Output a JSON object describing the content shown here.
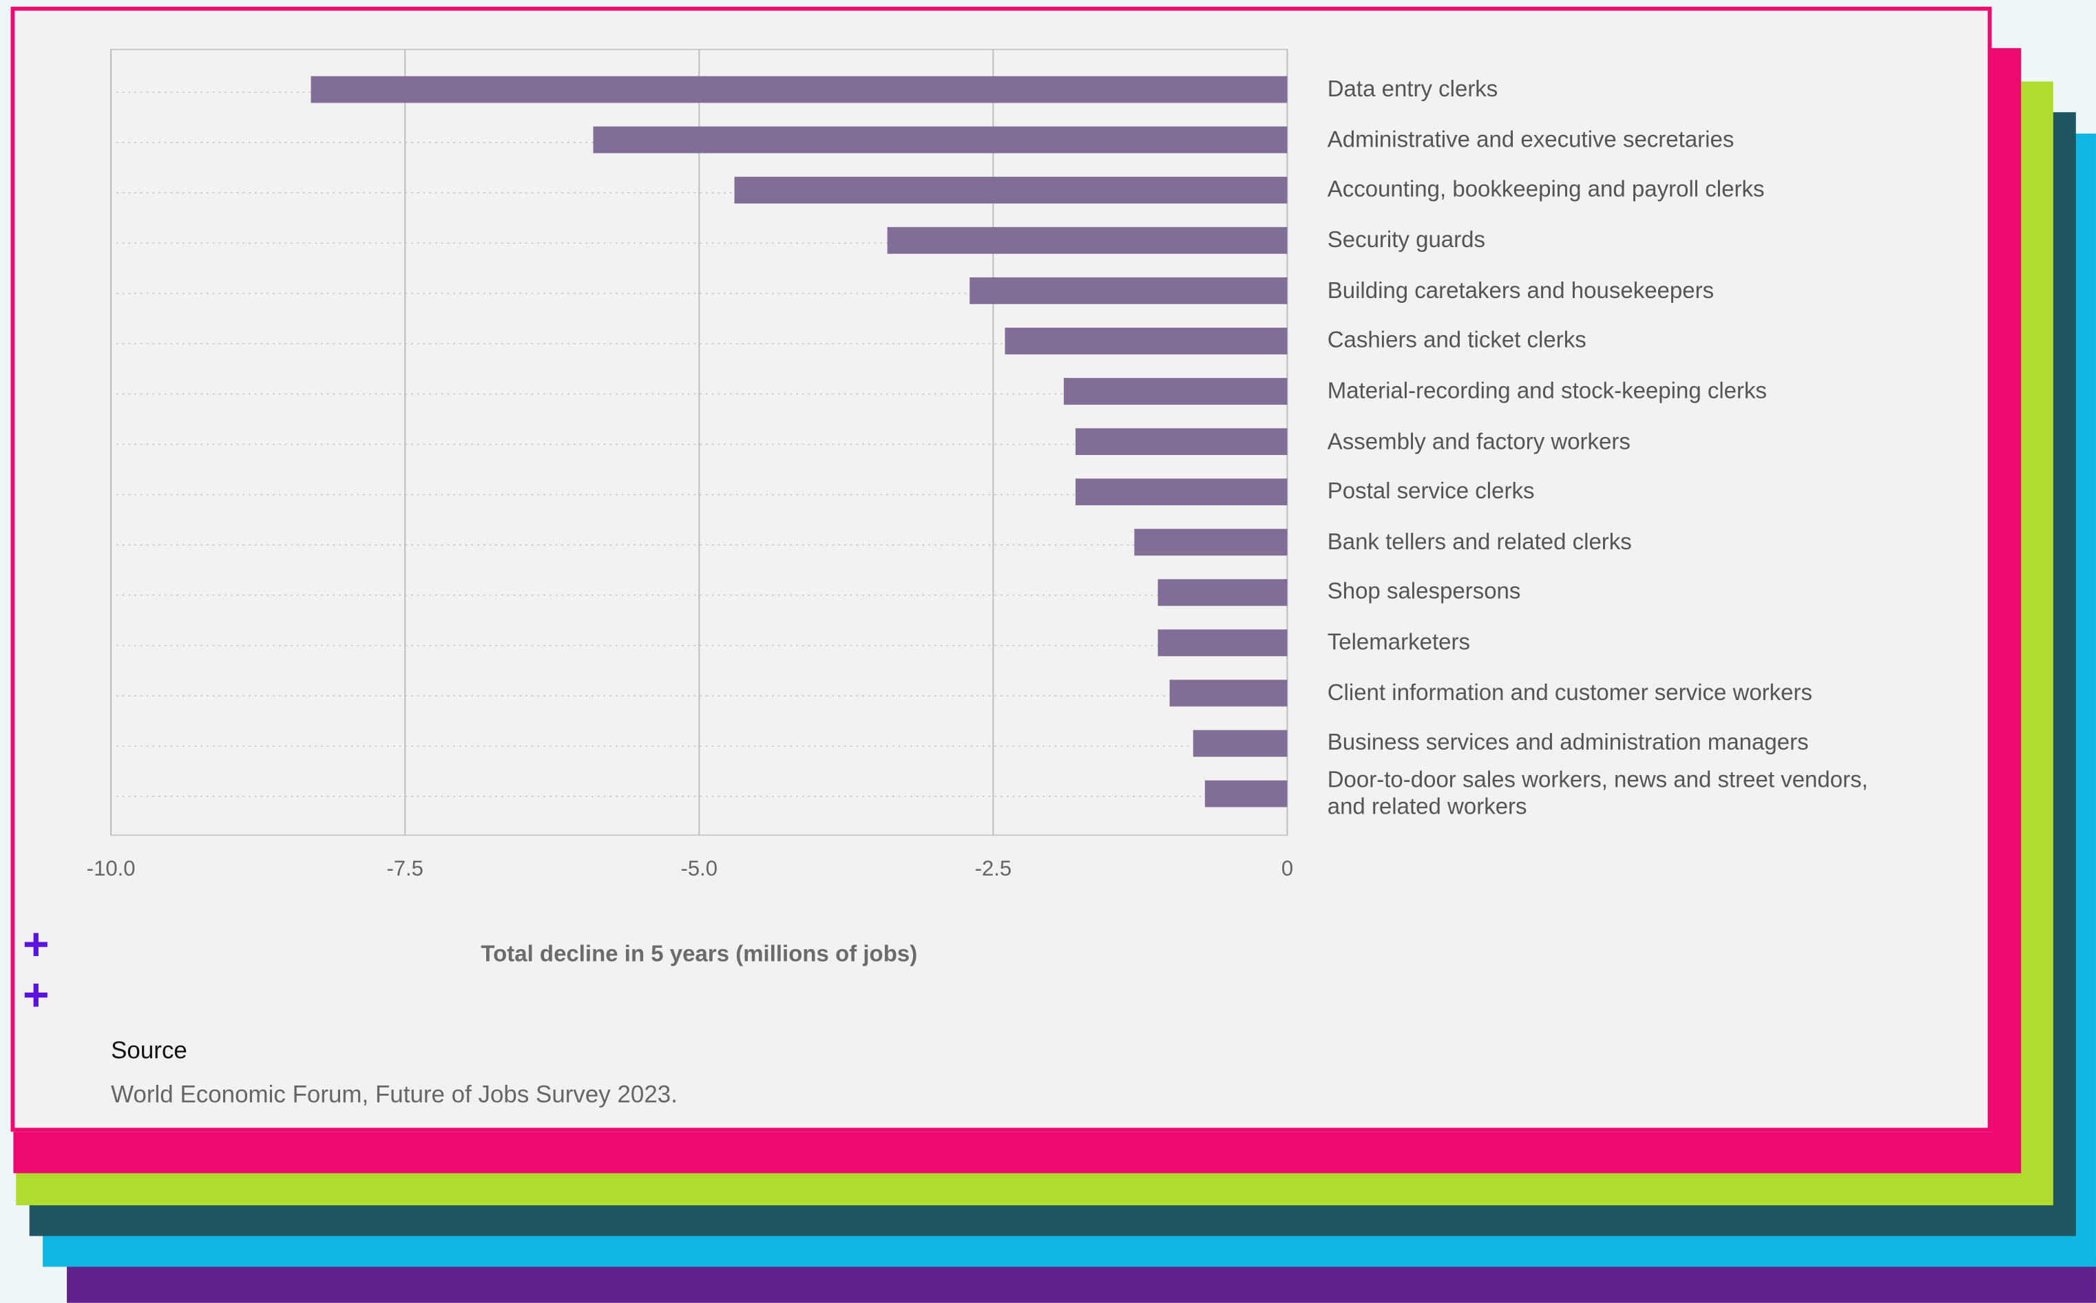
{
  "chart_data": {
    "type": "bar",
    "orientation": "horizontal",
    "xlabel": "Total decline in 5 years (millions of jobs)",
    "categories": [
      "Data entry clerks",
      "Administrative and executive secretaries",
      "Accounting, bookkeeping and payroll clerks",
      "Security guards",
      "Building caretakers and housekeepers",
      "Cashiers and ticket clerks",
      "Material-recording and stock-keeping clerks",
      "Assembly and factory workers",
      "Postal service clerks",
      "Bank tellers and related clerks",
      "Shop salespersons",
      "Telemarketers",
      "Client information and customer service workers",
      "Business services and administration managers",
      "Door-to-door sales workers, news and street vendors, and related workers"
    ],
    "values": [
      -8.3,
      -5.9,
      -4.7,
      -3.4,
      -2.7,
      -2.4,
      -1.9,
      -1.8,
      -1.8,
      -1.3,
      -1.1,
      -1.1,
      -1.0,
      -0.8,
      -0.7
    ],
    "color": "#806e96",
    "xlim": [
      -10,
      0
    ],
    "xticks": [
      {
        "value": -10,
        "label": "-10.0"
      },
      -7.5,
      {
        "value": -5,
        "label": "-5.0"
      },
      -2.5,
      0
    ],
    "grid": true
  },
  "source": {
    "heading": "Source",
    "text": "World Economic Forum, Future of Jobs Survey 2023."
  }
}
